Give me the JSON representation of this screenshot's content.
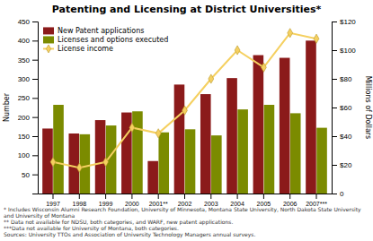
{
  "chart_data": {
    "type": "bar",
    "title": "Patenting and Licensing at District Universities*",
    "categories": [
      "1997",
      "1998",
      "1999",
      "2000",
      "2001**",
      "2002",
      "2003",
      "2004",
      "2005",
      "2006",
      "2007***"
    ],
    "series": [
      {
        "name": "New Patent applications",
        "type": "bar",
        "color": "#8B1A1A",
        "values": [
          170,
          157,
          192,
          212,
          85,
          285,
          260,
          302,
          362,
          355,
          400
        ]
      },
      {
        "name": "Licenses and options executed",
        "type": "bar",
        "color": "#7B8B00",
        "values": [
          232,
          155,
          178,
          215,
          160,
          168,
          152,
          220,
          232,
          210,
          172
        ]
      },
      {
        "name": "License income",
        "type": "line",
        "axis": "y2",
        "color": "#F5D060",
        "marker": "diamond",
        "values": [
          22,
          18,
          22,
          46,
          42,
          58,
          80,
          100,
          88,
          112,
          108
        ]
      }
    ],
    "ylabel": "Number",
    "y2label": "Millions of Dollars",
    "ylim": [
      0,
      450
    ],
    "yticks": [
      50,
      100,
      150,
      200,
      250,
      300,
      350,
      400,
      450
    ],
    "y2lim": [
      0,
      120
    ],
    "y2ticks": [
      0,
      {
        "value": 20,
        "label": "$20"
      },
      {
        "value": 40,
        "label": "$40"
      },
      {
        "value": 60,
        "label": "$60"
      },
      {
        "value": 80,
        "label": "$80"
      },
      {
        "value": 100,
        "label": "$100"
      },
      {
        "value": 120,
        "label": "$120"
      }
    ],
    "grid": false,
    "legend": "upper left",
    "annotations": [
      "* Includes Wisconsin Alumni Research Foundation, University of Minnesota, Montana State University, North Dakota State University and University of Montana",
      "** Data not available for NDSU, both categories, and WARF, new patent applications.",
      "***Data not available for University of Montana, both categories.",
      "Sources: University TTOs and Association of University Technology Managers annual surveys."
    ]
  }
}
